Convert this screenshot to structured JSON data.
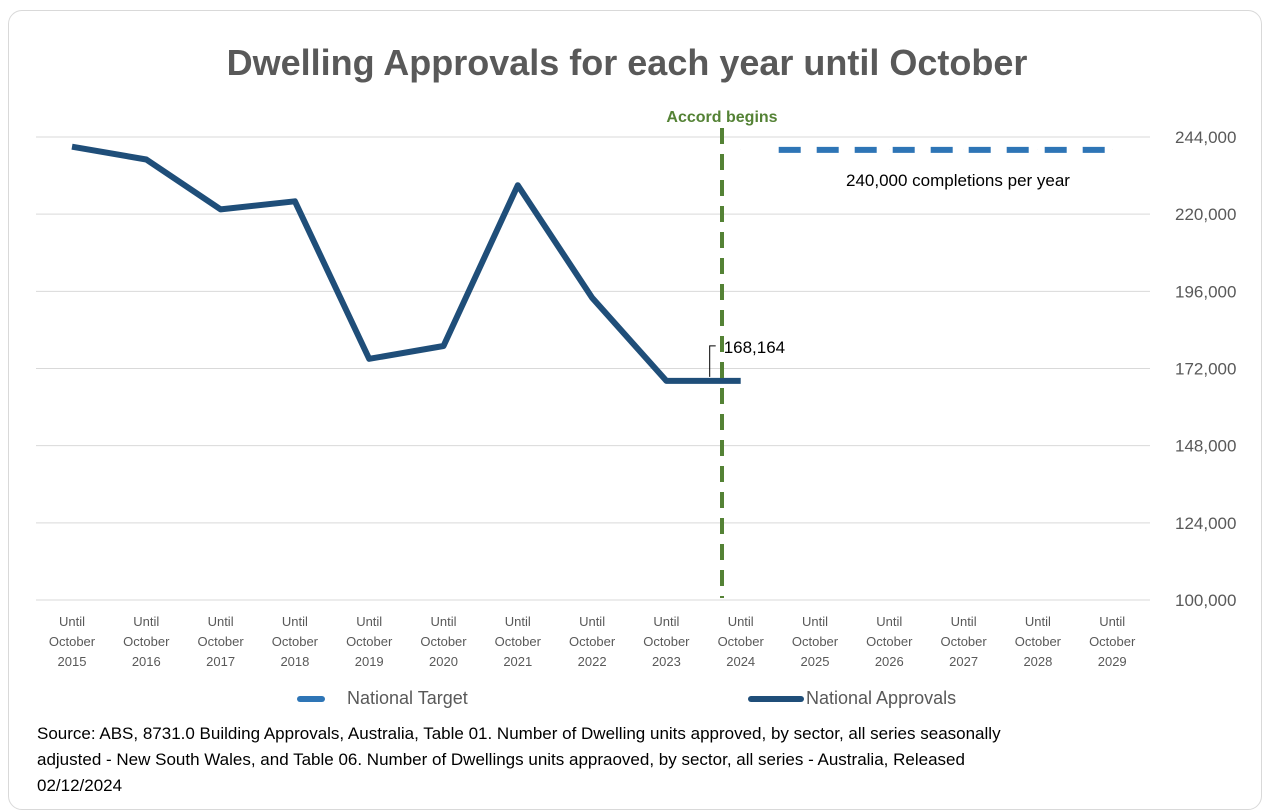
{
  "chart_data": {
    "type": "line",
    "title": "Dwelling Approvals for each year until October",
    "categories": [
      "Until October 2015",
      "Until October 2016",
      "Until October 2017",
      "Until October 2018",
      "Until October 2019",
      "Until October 2020",
      "Until October 2021",
      "Until October 2022",
      "Until October 2023",
      "Until October 2024",
      "Until October 2025",
      "Until October 2026",
      "Until October 2027",
      "Until October 2028",
      "Until October 2029"
    ],
    "category_lines": [
      [
        "Until",
        "October",
        "2015"
      ],
      [
        "Until",
        "October",
        "2016"
      ],
      [
        "Until",
        "October",
        "2017"
      ],
      [
        "Until",
        "October",
        "2018"
      ],
      [
        "Until",
        "October",
        "2019"
      ],
      [
        "Until",
        "October",
        "2020"
      ],
      [
        "Until",
        "October",
        "2021"
      ],
      [
        "Until",
        "October",
        "2022"
      ],
      [
        "Until",
        "October",
        "2023"
      ],
      [
        "Until",
        "October",
        "2024"
      ],
      [
        "Until",
        "October",
        "2025"
      ],
      [
        "Until",
        "October",
        "2026"
      ],
      [
        "Until",
        "October",
        "2027"
      ],
      [
        "Until",
        "October",
        "2028"
      ],
      [
        "Until",
        "October",
        "2029"
      ]
    ],
    "series": [
      {
        "name": "National Approvals",
        "color": "#1f4e79",
        "style": "solid",
        "values": [
          241000,
          237000,
          221500,
          224000,
          175000,
          179000,
          229000,
          194000,
          168164,
          168164,
          null,
          null,
          null,
          null,
          null
        ]
      },
      {
        "name": "National Target",
        "color": "#2e75b6",
        "style": "dashed",
        "values": [
          null,
          null,
          null,
          null,
          null,
          null,
          null,
          null,
          null,
          240000,
          240000,
          240000,
          240000,
          240000,
          240000
        ]
      }
    ],
    "y_axis": {
      "position": "right",
      "min": 100000,
      "max": 244000,
      "ticks": [
        100000,
        124000,
        148000,
        172000,
        196000,
        220000,
        244000
      ],
      "tick_labels": [
        "100,000",
        "124,000",
        "148,000",
        "172,000",
        "196,000",
        "220,000",
        "244,000"
      ]
    },
    "grid": true,
    "legend_position": "bottom",
    "annotations": {
      "accord_label": "Accord begins",
      "accord_color": "#548235",
      "target_label": "240,000 completions per year",
      "last_value_label": "168,164"
    }
  },
  "source_text": "Source: ABS, 8731.0 Building Approvals, Australia, Table 01. Number of Dwelling units approved, by sector, all series seasonally adjusted - New South Wales, and Table 06. Number of Dwellings units appraoved, by sector, all series - Australia, Released 02/12/2024"
}
